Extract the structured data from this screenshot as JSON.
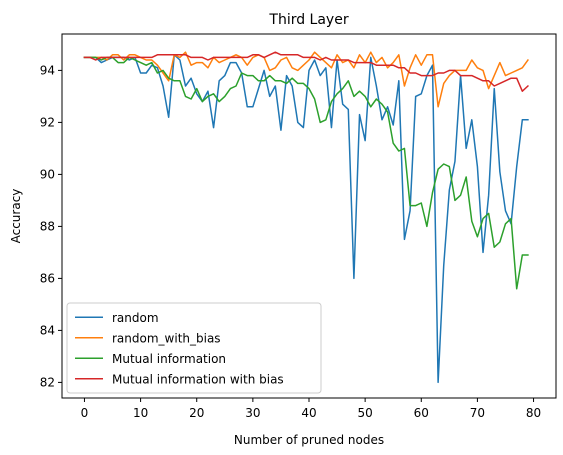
{
  "chart_data": {
    "type": "line",
    "title": "Third Layer",
    "xlabel": "Number of pruned nodes",
    "ylabel": "Accuracy",
    "xlim": [
      -4,
      84
    ],
    "ylim": [
      81.4,
      95.4
    ],
    "xticks": [
      0,
      10,
      20,
      30,
      40,
      50,
      60,
      70,
      80
    ],
    "yticks": [
      82,
      84,
      86,
      88,
      90,
      92,
      94
    ],
    "grid": false,
    "legend_position": "lower-left",
    "series": [
      {
        "name": "random",
        "color": "#1f77b4",
        "x": [
          0,
          1,
          2,
          3,
          4,
          5,
          6,
          7,
          8,
          9,
          10,
          11,
          12,
          13,
          14,
          15,
          16,
          17,
          18,
          19,
          20,
          21,
          22,
          23,
          24,
          25,
          26,
          27,
          28,
          29,
          30,
          31,
          32,
          33,
          34,
          35,
          36,
          37,
          38,
          39,
          40,
          41,
          42,
          43,
          44,
          45,
          46,
          47,
          48,
          49,
          50,
          51,
          52,
          53,
          54,
          55,
          56,
          57,
          58,
          59,
          60,
          61,
          62,
          63,
          64,
          65,
          66,
          67,
          68,
          69,
          70,
          71,
          72,
          73,
          74,
          75,
          76,
          77,
          78,
          79
        ],
        "values": [
          94.5,
          94.5,
          94.5,
          94.3,
          94.4,
          94.5,
          94.5,
          94.5,
          94.4,
          94.5,
          93.9,
          93.9,
          94.2,
          94.1,
          93.4,
          92.2,
          94.6,
          94.4,
          93.4,
          93.7,
          93.1,
          92.8,
          93.2,
          91.8,
          93.6,
          93.8,
          94.3,
          94.3,
          93.9,
          92.6,
          92.6,
          93.3,
          94.0,
          93.0,
          93.4,
          91.7,
          93.8,
          93.4,
          92.0,
          91.8,
          94.0,
          94.4,
          93.8,
          94.1,
          91.8,
          94.4,
          92.7,
          92.5,
          86.0,
          92.3,
          91.3,
          94.5,
          93.4,
          92.1,
          92.6,
          91.9,
          93.6,
          87.5,
          88.6,
          93.0,
          93.1,
          93.8,
          94.2,
          82.0,
          86.5,
          89.4,
          90.5,
          93.8,
          91.0,
          92.1,
          90.3,
          87.0,
          89.2,
          93.3,
          90.1,
          88.6,
          88.1,
          90.3,
          92.1,
          92.1
        ]
      },
      {
        "name": "random_with_bias",
        "color": "#ff7f0e",
        "x": [
          0,
          1,
          2,
          3,
          4,
          5,
          6,
          7,
          8,
          9,
          10,
          11,
          12,
          13,
          14,
          15,
          16,
          17,
          18,
          19,
          20,
          21,
          22,
          23,
          24,
          25,
          26,
          27,
          28,
          29,
          30,
          31,
          32,
          33,
          34,
          35,
          36,
          37,
          38,
          39,
          40,
          41,
          42,
          43,
          44,
          45,
          46,
          47,
          48,
          49,
          50,
          51,
          52,
          53,
          54,
          55,
          56,
          57,
          58,
          59,
          60,
          61,
          62,
          63,
          64,
          65,
          66,
          67,
          68,
          69,
          70,
          71,
          72,
          73,
          74,
          75,
          76,
          77,
          78,
          79
        ],
        "values": [
          94.5,
          94.5,
          94.5,
          94.5,
          94.4,
          94.6,
          94.6,
          94.4,
          94.6,
          94.6,
          94.5,
          94.4,
          94.4,
          94.2,
          93.9,
          93.6,
          94.6,
          94.5,
          94.7,
          94.2,
          94.3,
          94.3,
          94.1,
          94.5,
          94.3,
          94.4,
          94.5,
          94.6,
          94.5,
          94.2,
          94.5,
          94.6,
          94.5,
          94.0,
          94.1,
          94.4,
          94.5,
          94.1,
          94.0,
          94.2,
          94.4,
          94.7,
          94.5,
          94.3,
          94.1,
          94.6,
          94.3,
          94.4,
          94.1,
          94.6,
          94.3,
          94.7,
          94.3,
          94.5,
          94.1,
          94.3,
          94.6,
          93.4,
          94.1,
          94.6,
          94.2,
          94.6,
          94.6,
          92.6,
          93.5,
          93.8,
          94.0,
          94.0,
          94.0,
          94.4,
          94.1,
          94.0,
          93.3,
          93.8,
          94.3,
          93.8,
          93.9,
          94.0,
          94.1,
          94.4
        ]
      },
      {
        "name": "Mutual information",
        "color": "#2ca02c",
        "x": [
          0,
          1,
          2,
          3,
          4,
          5,
          6,
          7,
          8,
          9,
          10,
          11,
          12,
          13,
          14,
          15,
          16,
          17,
          18,
          19,
          20,
          21,
          22,
          23,
          24,
          25,
          26,
          27,
          28,
          29,
          30,
          31,
          32,
          33,
          34,
          35,
          36,
          37,
          38,
          39,
          40,
          41,
          42,
          43,
          44,
          45,
          46,
          47,
          48,
          49,
          50,
          51,
          52,
          53,
          54,
          55,
          56,
          57,
          58,
          59,
          60,
          61,
          62,
          63,
          64,
          65,
          66,
          67,
          68,
          69,
          70,
          71,
          72,
          73,
          74,
          75,
          76,
          77,
          78,
          79
        ],
        "values": [
          94.5,
          94.5,
          94.5,
          94.4,
          94.5,
          94.5,
          94.3,
          94.3,
          94.5,
          94.4,
          94.3,
          94.2,
          94.3,
          93.9,
          94.0,
          93.7,
          93.6,
          93.6,
          93.0,
          92.9,
          93.3,
          92.8,
          93.0,
          93.1,
          92.8,
          93.0,
          93.3,
          93.4,
          93.9,
          93.8,
          93.8,
          93.6,
          93.6,
          93.8,
          93.6,
          93.6,
          93.5,
          93.7,
          93.5,
          93.5,
          93.3,
          92.9,
          92.0,
          92.1,
          92.8,
          93.1,
          93.3,
          93.6,
          93.0,
          93.2,
          93.0,
          92.6,
          92.9,
          92.7,
          92.4,
          91.2,
          90.9,
          91.0,
          88.8,
          88.8,
          88.9,
          88.0,
          89.3,
          90.2,
          90.4,
          90.3,
          89.0,
          89.2,
          89.9,
          88.2,
          87.6,
          88.3,
          88.5,
          87.2,
          87.4,
          88.1,
          88.3,
          85.6,
          86.9,
          86.9
        ]
      },
      {
        "name": "Mutual information with bias",
        "color": "#d62728",
        "x": [
          0,
          1,
          2,
          3,
          4,
          5,
          6,
          7,
          8,
          9,
          10,
          11,
          12,
          13,
          14,
          15,
          16,
          17,
          18,
          19,
          20,
          21,
          22,
          23,
          24,
          25,
          26,
          27,
          28,
          29,
          30,
          31,
          32,
          33,
          34,
          35,
          36,
          37,
          38,
          39,
          40,
          41,
          42,
          43,
          44,
          45,
          46,
          47,
          48,
          49,
          50,
          51,
          52,
          53,
          54,
          55,
          56,
          57,
          58,
          59,
          60,
          61,
          62,
          63,
          64,
          65,
          66,
          67,
          68,
          69,
          70,
          71,
          72,
          73,
          74,
          75,
          76,
          77,
          78,
          79
        ],
        "values": [
          94.5,
          94.5,
          94.4,
          94.5,
          94.5,
          94.5,
          94.5,
          94.5,
          94.5,
          94.5,
          94.5,
          94.5,
          94.5,
          94.6,
          94.6,
          94.6,
          94.6,
          94.6,
          94.6,
          94.5,
          94.5,
          94.5,
          94.4,
          94.5,
          94.5,
          94.5,
          94.5,
          94.5,
          94.5,
          94.5,
          94.6,
          94.6,
          94.5,
          94.6,
          94.7,
          94.6,
          94.6,
          94.6,
          94.6,
          94.5,
          94.5,
          94.5,
          94.4,
          94.5,
          94.4,
          94.4,
          94.4,
          94.4,
          94.3,
          94.3,
          94.3,
          94.3,
          94.2,
          94.2,
          94.2,
          94.2,
          94.1,
          94.1,
          93.9,
          93.9,
          93.8,
          93.8,
          93.8,
          93.9,
          93.9,
          94.0,
          94.0,
          93.8,
          93.8,
          93.8,
          93.7,
          93.6,
          93.6,
          93.4,
          93.5,
          93.6,
          93.7,
          93.7,
          93.2,
          93.4
        ]
      }
    ]
  }
}
